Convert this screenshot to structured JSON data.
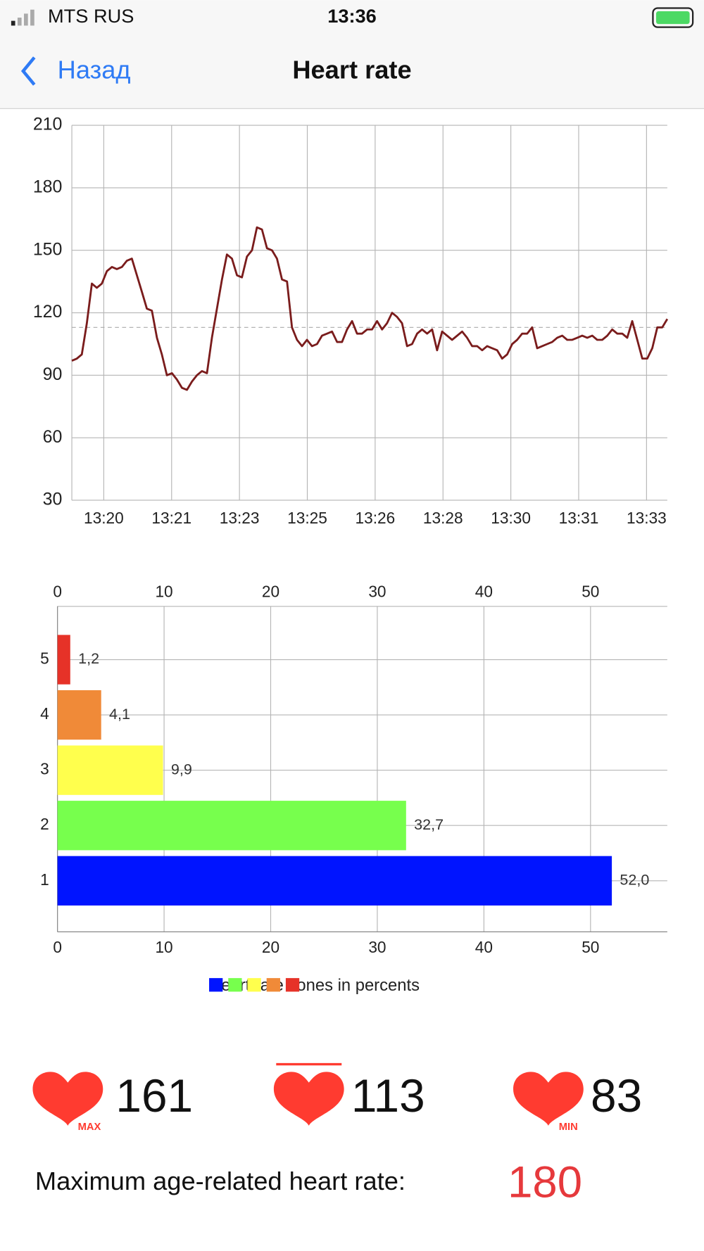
{
  "status_bar": {
    "carrier": "MTS RUS",
    "time": "13:36"
  },
  "nav": {
    "back": "Назад",
    "title": "Heart rate"
  },
  "chart_data": [
    {
      "type": "line",
      "color": "#7a1c1c",
      "values": [
        97,
        98,
        100,
        115,
        134,
        132,
        134,
        140,
        142,
        141,
        142,
        145,
        146,
        138,
        130,
        122,
        121,
        108,
        100,
        90,
        91,
        88,
        84,
        83,
        87,
        90,
        92,
        91,
        108,
        122,
        136,
        148,
        146,
        138,
        137,
        147,
        150,
        161,
        160,
        151,
        150,
        146,
        136,
        135,
        113,
        107,
        104,
        107,
        104,
        105,
        109,
        110,
        111,
        106,
        106,
        112,
        116,
        110,
        110,
        112,
        112,
        116,
        112,
        115,
        120,
        118,
        115,
        104,
        105,
        110,
        112,
        110,
        112,
        102,
        111,
        109,
        107,
        109,
        111,
        108,
        104,
        104,
        102,
        104,
        103,
        102,
        98,
        100,
        105,
        107,
        110,
        110,
        113,
        103,
        104,
        105,
        106,
        108,
        109,
        107,
        107,
        108,
        109,
        108,
        109,
        107,
        107,
        109,
        112,
        110,
        110,
        108,
        116,
        107,
        98,
        98,
        103,
        113,
        113,
        117
      ],
      "ylim": [
        30,
        210
      ],
      "yticks": [
        30,
        60,
        90,
        120,
        150,
        180,
        210
      ],
      "xtick_labels": [
        "13:20",
        "13:21",
        "13:23",
        "13:25",
        "13:26",
        "13:28",
        "13:30",
        "13:31",
        "13:33"
      ],
      "grid": true
    },
    {
      "type": "hbar",
      "title": "Heart rate zones in percents",
      "categories": [
        "1",
        "2",
        "3",
        "4",
        "5"
      ],
      "values": [
        52.0,
        32.7,
        9.9,
        4.1,
        1.2
      ],
      "value_labels": [
        "52,0",
        "32,7",
        "9,9",
        "4,1",
        "1,2"
      ],
      "colors": [
        "#0014ff",
        "#77ff4d",
        "#ffff4d",
        "#f08a38",
        "#e63228"
      ],
      "xlim": [
        0,
        57.2
      ],
      "xticks": [
        0,
        10,
        20,
        30,
        40,
        50
      ],
      "grid": true
    }
  ],
  "stats": [
    {
      "value": 161,
      "tag": "MAX"
    },
    {
      "value": 113
    },
    {
      "value": 83,
      "tag": "MIN"
    }
  ],
  "max_rate": {
    "label": "Maximum age-related heart rate:",
    "value": 180
  }
}
